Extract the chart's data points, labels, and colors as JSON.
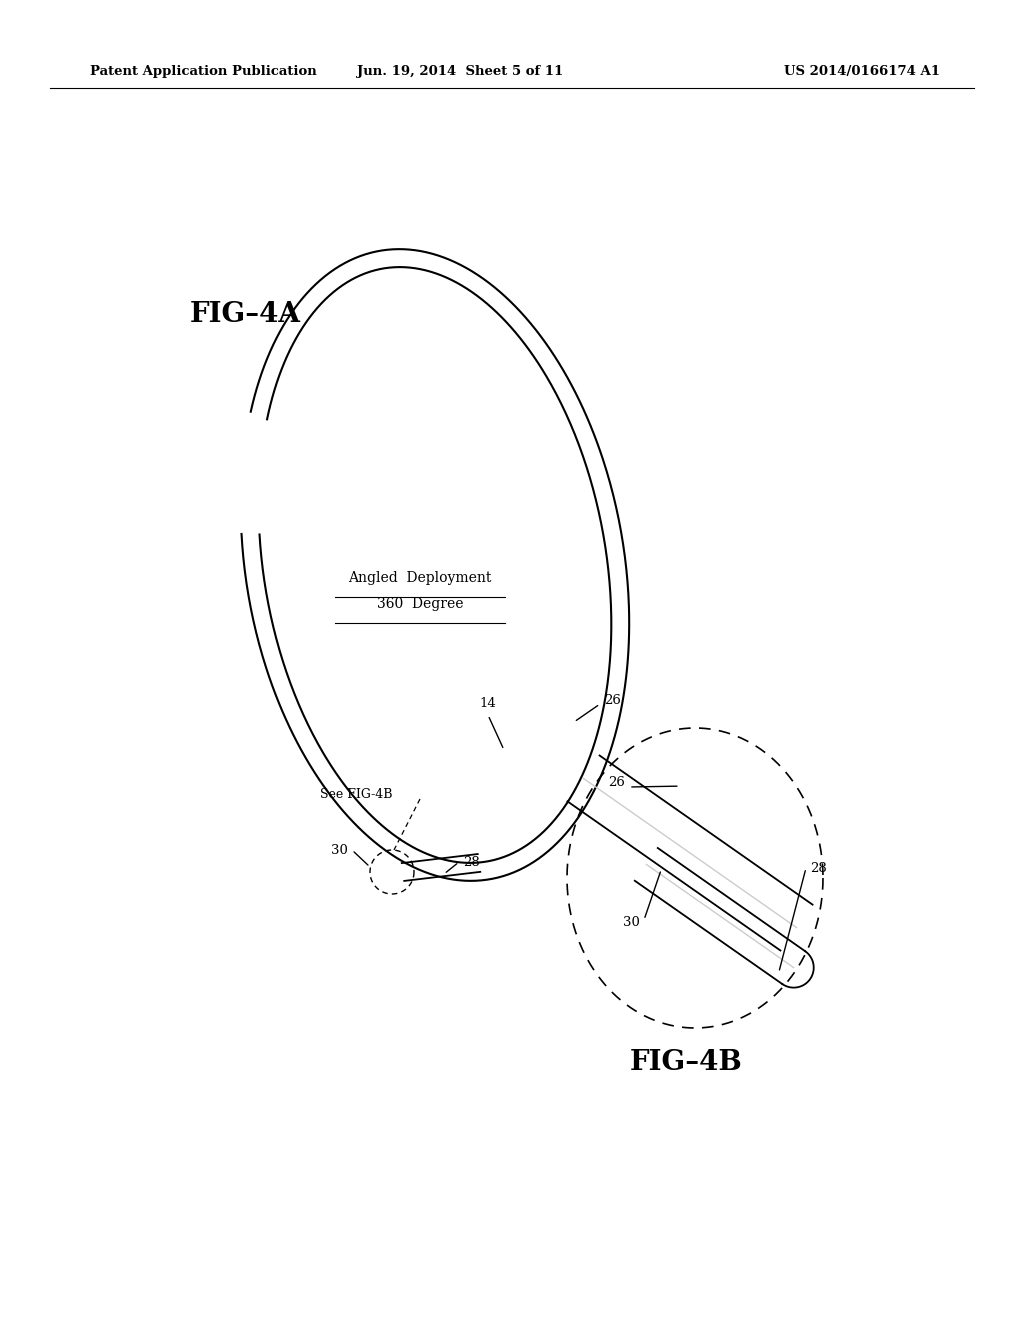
{
  "bg_color": "#ffffff",
  "header_left": "Patent Application Publication",
  "header_mid": "Jun. 19, 2014  Sheet 5 of 11",
  "header_right": "US 2014/0166174 A1",
  "fig_label_4a": "FIG–4A",
  "fig_label_4b": "FIG–4B",
  "annotation_line1": "Angled  Deployment",
  "annotation_line2": "360  Degree",
  "label_14": "14",
  "label_26": "26",
  "label_28": "28",
  "label_30": "30",
  "label_see_fig4b": "See FIG-4B"
}
